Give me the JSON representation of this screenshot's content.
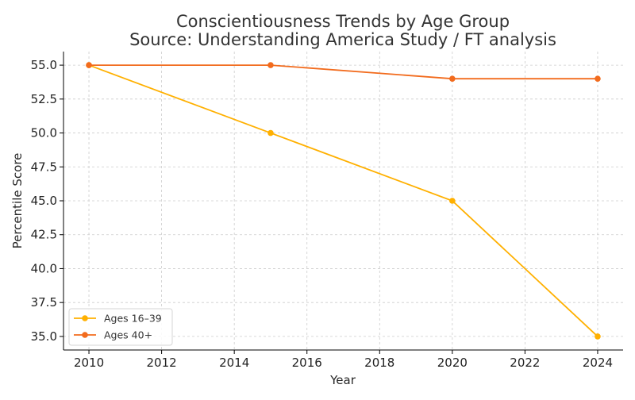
{
  "chart_data": {
    "type": "line",
    "title_line1": "Conscientiousness Trends by Age Group",
    "title_line2": "Source: Understanding America Study / FT analysis",
    "xlabel": "Year",
    "ylabel": "Percentile Score",
    "xlim": [
      2009.3,
      2024.7
    ],
    "ylim": [
      34.0,
      56.0
    ],
    "xticks": [
      2010,
      2012,
      2014,
      2016,
      2018,
      2020,
      2022,
      2024
    ],
    "yticks": [
      35.0,
      37.5,
      40.0,
      42.5,
      45.0,
      47.5,
      50.0,
      52.5,
      55.0
    ],
    "x_tick_labels": [
      "2010",
      "2012",
      "2014",
      "2016",
      "2018",
      "2020",
      "2022",
      "2024"
    ],
    "y_tick_labels": [
      "35.0",
      "37.5",
      "40.0",
      "42.5",
      "45.0",
      "47.5",
      "50.0",
      "52.5",
      "55.0"
    ],
    "grid": true,
    "legend_position": "bottom-left",
    "series": [
      {
        "name": "Ages 16–39",
        "color": "#FFB000",
        "x": [
          2010,
          2015,
          2020,
          2024
        ],
        "values": [
          55.0,
          50.0,
          45.0,
          35.0
        ]
      },
      {
        "name": "Ages 40+",
        "color": "#F26B1D",
        "x": [
          2010,
          2015,
          2020,
          2024
        ],
        "values": [
          55.0,
          55.0,
          54.0,
          54.0
        ]
      }
    ]
  }
}
